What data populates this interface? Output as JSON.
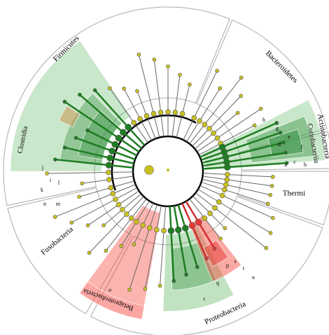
{
  "phylum_labels": [
    "Firmicutes",
    "Bacteroidetes",
    "Actinobacteria",
    "Thermi",
    "Proteobacteria",
    "Fusobacteria"
  ],
  "class_labels": [
    "Clostridia",
    "Coriobacteriia",
    "Betaproteobacteria"
  ],
  "clade_letters": [
    "a",
    "b",
    "c",
    "d",
    "e",
    "f",
    "g",
    "h",
    "i",
    "j",
    "k",
    "l",
    "m",
    "n",
    "o",
    "p",
    "q",
    "r",
    "s",
    "t",
    "u"
  ]
}
